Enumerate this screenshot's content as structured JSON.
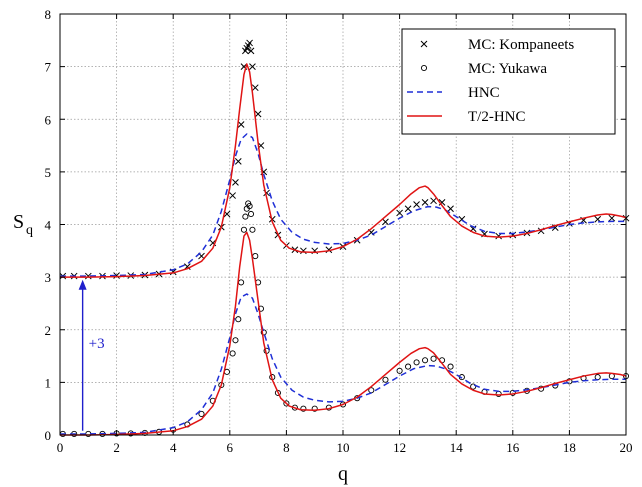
{
  "chart_data": {
    "type": "line",
    "xlabel": "q",
    "ylabel": "S",
    "ylabel_sub": "q",
    "xlim": [
      0,
      20
    ],
    "ylim": [
      0,
      8
    ],
    "x_ticks": [
      0,
      2,
      4,
      6,
      8,
      10,
      12,
      14,
      16,
      18,
      20
    ],
    "y_ticks": [
      0,
      1,
      2,
      3,
      4,
      5,
      6,
      7,
      8
    ],
    "grid": true,
    "legend_position": "top-right",
    "annotation": {
      "text": "+3",
      "color": "#1f1fcc",
      "x": 0.8,
      "y_from": 0.08,
      "y_to": 2.95
    },
    "series": [
      {
        "name": "MC: Kompaneets",
        "kind": "scatter",
        "marker": "x",
        "color": "#000000",
        "x": [
          0.1,
          0.5,
          1.0,
          1.5,
          2.0,
          2.5,
          3.0,
          3.5,
          4.0,
          4.5,
          5.0,
          5.4,
          5.7,
          5.9,
          6.1,
          6.2,
          6.3,
          6.4,
          6.5,
          6.55,
          6.6,
          6.65,
          6.7,
          6.75,
          6.8,
          6.9,
          7.0,
          7.1,
          7.2,
          7.3,
          7.5,
          7.7,
          8.0,
          8.3,
          8.6,
          9.0,
          9.5,
          10.0,
          10.5,
          11.0,
          11.5,
          12.0,
          12.3,
          12.6,
          12.9,
          13.2,
          13.5,
          13.8,
          14.2,
          14.6,
          15.0,
          15.5,
          16.0,
          16.5,
          17.0,
          17.5,
          18.0,
          18.5,
          19.0,
          19.5,
          20.0
        ],
        "y": [
          3.02,
          3.02,
          3.02,
          3.02,
          3.03,
          3.03,
          3.04,
          3.06,
          3.1,
          3.2,
          3.4,
          3.65,
          3.95,
          4.2,
          4.55,
          4.8,
          5.2,
          5.9,
          7.0,
          7.3,
          7.35,
          7.4,
          7.45,
          7.3,
          7.0,
          6.6,
          6.1,
          5.5,
          5.0,
          4.6,
          4.1,
          3.8,
          3.6,
          3.52,
          3.5,
          3.5,
          3.52,
          3.58,
          3.7,
          3.85,
          4.05,
          4.22,
          4.3,
          4.38,
          4.42,
          4.45,
          4.42,
          4.3,
          4.1,
          3.92,
          3.82,
          3.78,
          3.8,
          3.84,
          3.88,
          3.94,
          4.02,
          4.08,
          4.1,
          4.12,
          4.12
        ]
      },
      {
        "name": "MC: Yukawa",
        "kind": "scatter",
        "marker": "o",
        "color": "#000000",
        "x": [
          0.1,
          0.5,
          1.0,
          1.5,
          2.0,
          2.5,
          3.0,
          3.5,
          4.0,
          4.5,
          5.0,
          5.4,
          5.7,
          5.9,
          6.1,
          6.2,
          6.3,
          6.4,
          6.5,
          6.55,
          6.6,
          6.65,
          6.7,
          6.75,
          6.8,
          6.9,
          7.0,
          7.1,
          7.2,
          7.3,
          7.5,
          7.7,
          8.0,
          8.3,
          8.6,
          9.0,
          9.5,
          10.0,
          10.5,
          11.0,
          11.5,
          12.0,
          12.3,
          12.6,
          12.9,
          13.2,
          13.5,
          13.8,
          14.2,
          14.6,
          15.0,
          15.5,
          16.0,
          16.5,
          17.0,
          17.5,
          18.0,
          18.5,
          19.0,
          19.5,
          20.0
        ],
        "y": [
          0.02,
          0.02,
          0.02,
          0.02,
          0.03,
          0.03,
          0.04,
          0.06,
          0.1,
          0.2,
          0.4,
          0.65,
          0.95,
          1.2,
          1.55,
          1.8,
          2.2,
          2.9,
          3.9,
          4.15,
          4.3,
          4.4,
          4.35,
          4.2,
          3.9,
          3.4,
          2.9,
          2.4,
          1.95,
          1.6,
          1.1,
          0.8,
          0.6,
          0.52,
          0.5,
          0.5,
          0.52,
          0.58,
          0.7,
          0.85,
          1.05,
          1.22,
          1.3,
          1.38,
          1.42,
          1.45,
          1.42,
          1.3,
          1.1,
          0.92,
          0.82,
          0.78,
          0.8,
          0.84,
          0.88,
          0.94,
          1.02,
          1.08,
          1.1,
          1.12,
          1.12
        ]
      },
      {
        "name": "HNC",
        "kind": "line",
        "dash": "6,4",
        "color": "#1f2fd6",
        "x": [
          0,
          1,
          2,
          3,
          4,
          4.5,
          5,
          5.4,
          5.7,
          6.0,
          6.2,
          6.4,
          6.6,
          6.8,
          7.0,
          7.2,
          7.5,
          7.8,
          8.2,
          8.6,
          9.0,
          9.5,
          10.0,
          10.5,
          11.0,
          11.5,
          12.0,
          12.5,
          13.0,
          13.3,
          13.6,
          14.0,
          14.5,
          15.0,
          15.5,
          16.0,
          16.5,
          17.0,
          17.5,
          18.0,
          18.5,
          19.0,
          19.5,
          20.0
        ],
        "y": [
          3.02,
          3.02,
          3.03,
          3.05,
          3.14,
          3.25,
          3.48,
          3.8,
          4.25,
          4.85,
          5.3,
          5.62,
          5.72,
          5.65,
          5.35,
          4.95,
          4.45,
          4.1,
          3.85,
          3.72,
          3.66,
          3.63,
          3.64,
          3.7,
          3.8,
          3.96,
          4.12,
          4.26,
          4.34,
          4.33,
          4.28,
          4.15,
          3.98,
          3.87,
          3.83,
          3.83,
          3.86,
          3.9,
          3.95,
          4.0,
          4.03,
          4.05,
          4.06,
          4.06
        ]
      },
      {
        "name": "HNC (shifted)",
        "kind": "line",
        "dash": "6,4",
        "color": "#1f2fd6",
        "x": [
          0,
          1,
          2,
          3,
          4,
          4.5,
          5,
          5.4,
          5.7,
          6.0,
          6.2,
          6.4,
          6.6,
          6.8,
          7.0,
          7.2,
          7.5,
          7.8,
          8.2,
          8.6,
          9.0,
          9.5,
          10.0,
          10.5,
          11.0,
          11.5,
          12.0,
          12.5,
          13.0,
          13.3,
          13.6,
          14.0,
          14.5,
          15.0,
          15.5,
          16.0,
          16.5,
          17.0,
          17.5,
          18.0,
          18.5,
          19.0,
          19.5,
          20.0
        ],
        "y": [
          0.02,
          0.02,
          0.03,
          0.05,
          0.14,
          0.25,
          0.48,
          0.8,
          1.25,
          1.85,
          2.3,
          2.62,
          2.68,
          2.6,
          2.3,
          1.95,
          1.45,
          1.1,
          0.85,
          0.72,
          0.66,
          0.63,
          0.64,
          0.7,
          0.8,
          0.96,
          1.12,
          1.26,
          1.32,
          1.31,
          1.26,
          1.15,
          0.98,
          0.87,
          0.83,
          0.83,
          0.86,
          0.9,
          0.95,
          1.0,
          1.03,
          1.05,
          1.06,
          1.06
        ]
      },
      {
        "name": "T/2-HNC",
        "kind": "line",
        "color": "#e01414",
        "x": [
          0,
          1,
          2,
          3,
          4,
          4.5,
          5,
          5.4,
          5.7,
          6.0,
          6.2,
          6.35,
          6.5,
          6.6,
          6.7,
          6.8,
          7.0,
          7.2,
          7.5,
          7.8,
          8.1,
          8.5,
          9.0,
          9.5,
          10.0,
          10.5,
          11.0,
          11.5,
          12.0,
          12.4,
          12.7,
          12.9,
          13.0,
          13.2,
          13.5,
          13.8,
          14.2,
          14.6,
          15.0,
          15.5,
          16.0,
          16.5,
          17.0,
          17.5,
          18.0,
          18.5,
          19.0,
          19.3,
          19.5,
          19.8,
          20.0
        ],
        "y": [
          3.0,
          3.0,
          3.01,
          3.03,
          3.08,
          3.16,
          3.3,
          3.55,
          3.95,
          4.7,
          5.5,
          6.2,
          6.85,
          7.05,
          6.9,
          6.5,
          5.55,
          4.75,
          4.05,
          3.7,
          3.55,
          3.48,
          3.47,
          3.5,
          3.58,
          3.72,
          3.92,
          4.15,
          4.38,
          4.58,
          4.7,
          4.73,
          4.7,
          4.58,
          4.36,
          4.15,
          3.97,
          3.85,
          3.78,
          3.76,
          3.78,
          3.83,
          3.9,
          3.98,
          4.05,
          4.12,
          4.18,
          4.2,
          4.19,
          4.16,
          4.13
        ]
      },
      {
        "name": "T/2-HNC (shifted)",
        "kind": "line",
        "color": "#e01414",
        "x": [
          0,
          1,
          2,
          3,
          4,
          4.5,
          5,
          5.4,
          5.7,
          6.0,
          6.2,
          6.35,
          6.5,
          6.6,
          6.7,
          6.8,
          7.0,
          7.2,
          7.5,
          7.8,
          8.1,
          8.5,
          9.0,
          9.5,
          10.0,
          10.5,
          11.0,
          11.5,
          12.0,
          12.4,
          12.7,
          12.9,
          13.0,
          13.2,
          13.5,
          13.8,
          14.2,
          14.6,
          15.0,
          15.5,
          16.0,
          16.5,
          17.0,
          17.5,
          18.0,
          18.5,
          19.0,
          19.3,
          19.5,
          19.8,
          20.0
        ],
        "y": [
          0.0,
          0.0,
          0.01,
          0.03,
          0.08,
          0.16,
          0.3,
          0.55,
          0.95,
          1.7,
          2.45,
          3.2,
          3.78,
          3.85,
          3.7,
          3.35,
          2.55,
          1.75,
          1.05,
          0.7,
          0.55,
          0.48,
          0.47,
          0.5,
          0.58,
          0.72,
          0.92,
          1.15,
          1.38,
          1.55,
          1.64,
          1.66,
          1.64,
          1.56,
          1.36,
          1.15,
          0.97,
          0.85,
          0.78,
          0.76,
          0.78,
          0.83,
          0.9,
          0.98,
          1.05,
          1.12,
          1.17,
          1.18,
          1.17,
          1.15,
          1.12
        ]
      }
    ],
    "legend": [
      {
        "label": "MC: Kompaneets",
        "marker": "x",
        "color": "#000000"
      },
      {
        "label": "MC: Yukawa",
        "marker": "o",
        "color": "#000000"
      },
      {
        "label": "HNC",
        "line": "dashed",
        "color": "#1f2fd6"
      },
      {
        "label": "T/2-HNC",
        "line": "solid",
        "color": "#e01414"
      }
    ]
  }
}
